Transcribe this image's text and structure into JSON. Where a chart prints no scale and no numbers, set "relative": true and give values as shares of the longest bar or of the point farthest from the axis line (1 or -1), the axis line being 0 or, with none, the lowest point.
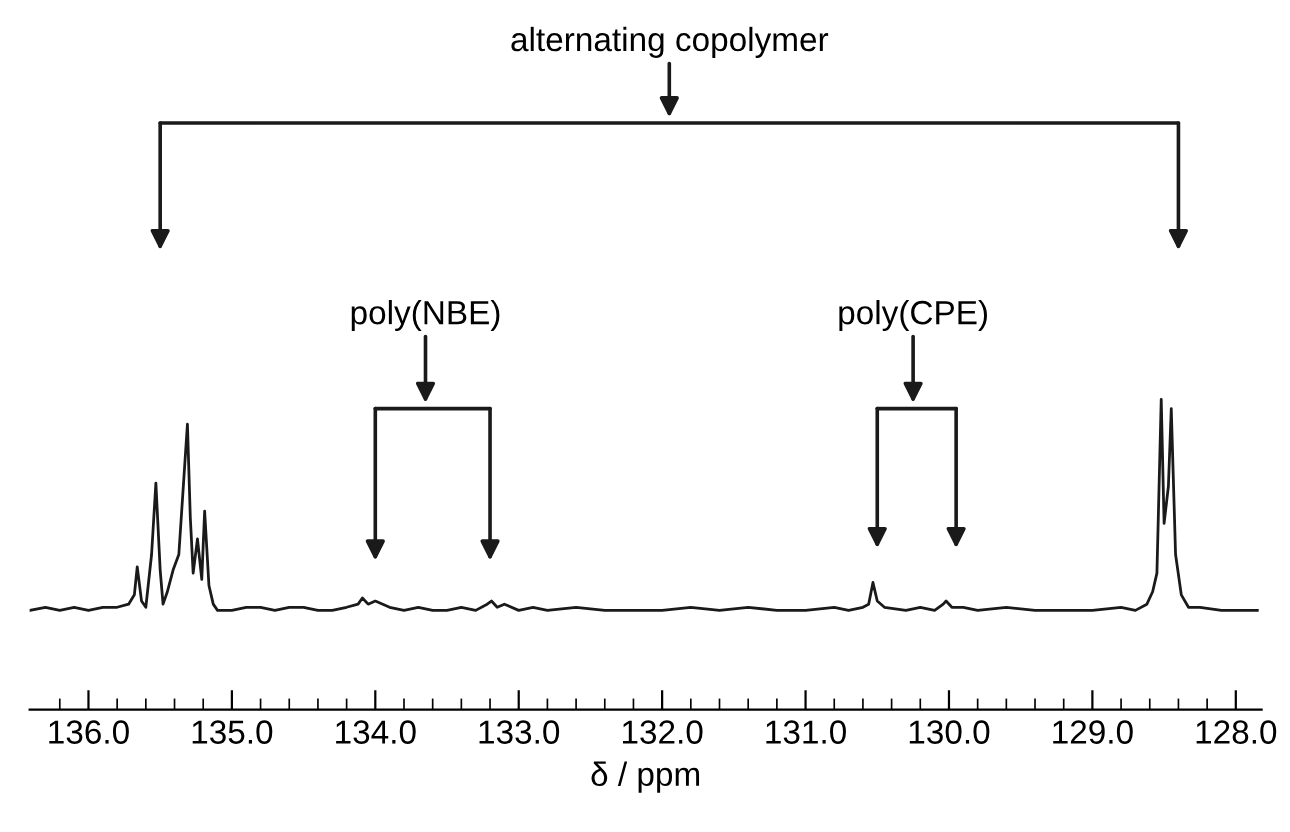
{
  "chart_data": {
    "type": "line",
    "relative": true,
    "xlabel": "δ / ppm",
    "xlim": [
      136.41,
      127.82
    ],
    "xticks": [
      {
        "value": 136.2,
        "label": null
      },
      {
        "value": 136.0,
        "label": "136.0"
      },
      {
        "value": 135.8,
        "label": null
      },
      {
        "value": 135.6,
        "label": null
      },
      {
        "value": 135.4,
        "label": null
      },
      {
        "value": 135.2,
        "label": null
      },
      {
        "value": 135.0,
        "label": "135.0"
      },
      {
        "value": 134.8,
        "label": null
      },
      {
        "value": 134.6,
        "label": null
      },
      {
        "value": 134.4,
        "label": null
      },
      {
        "value": 134.2,
        "label": null
      },
      {
        "value": 134.0,
        "label": "134.0"
      },
      {
        "value": 133.8,
        "label": null
      },
      {
        "value": 133.6,
        "label": null
      },
      {
        "value": 133.4,
        "label": null
      },
      {
        "value": 133.2,
        "label": null
      },
      {
        "value": 133.0,
        "label": "133.0"
      },
      {
        "value": 132.8,
        "label": null
      },
      {
        "value": 132.6,
        "label": null
      },
      {
        "value": 132.4,
        "label": null
      },
      {
        "value": 132.2,
        "label": null
      },
      {
        "value": 132.0,
        "label": "132.0"
      },
      {
        "value": 131.8,
        "label": null
      },
      {
        "value": 131.6,
        "label": null
      },
      {
        "value": 131.4,
        "label": null
      },
      {
        "value": 131.2,
        "label": null
      },
      {
        "value": 131.0,
        "label": "131.0"
      },
      {
        "value": 130.8,
        "label": null
      },
      {
        "value": 130.6,
        "label": null
      },
      {
        "value": 130.4,
        "label": null
      },
      {
        "value": 130.2,
        "label": null
      },
      {
        "value": 130.0,
        "label": "130.0"
      },
      {
        "value": 129.8,
        "label": null
      },
      {
        "value": 129.6,
        "label": null
      },
      {
        "value": 129.4,
        "label": null
      },
      {
        "value": 129.2,
        "label": null
      },
      {
        "value": 129.0,
        "label": "129.0"
      },
      {
        "value": 128.8,
        "label": null
      },
      {
        "value": 128.6,
        "label": null
      },
      {
        "value": 128.4,
        "label": null
      },
      {
        "value": 128.2,
        "label": null
      },
      {
        "value": 128.0,
        "label": "128.0"
      }
    ],
    "series": [
      {
        "color": "#1a1a1a",
        "x": [
          136.41,
          136.3,
          136.2,
          136.1,
          136.0,
          135.9,
          135.8,
          135.72,
          135.68,
          135.66,
          135.63,
          135.6,
          135.56,
          135.53,
          135.5,
          135.48,
          135.45,
          135.41,
          135.37,
          135.33,
          135.31,
          135.29,
          135.27,
          135.24,
          135.21,
          135.19,
          135.16,
          135.13,
          135.1,
          135.0,
          134.9,
          134.8,
          134.7,
          134.6,
          134.5,
          134.4,
          134.3,
          134.2,
          134.12,
          134.09,
          134.05,
          134.0,
          133.9,
          133.8,
          133.7,
          133.6,
          133.5,
          133.4,
          133.3,
          133.22,
          133.19,
          133.15,
          133.1,
          133.0,
          132.9,
          132.8,
          132.6,
          132.4,
          132.2,
          132.0,
          131.8,
          131.6,
          131.4,
          131.2,
          131.0,
          130.8,
          130.7,
          130.6,
          130.56,
          130.53,
          130.5,
          130.45,
          130.3,
          130.2,
          130.1,
          130.04,
          130.02,
          129.98,
          129.9,
          129.8,
          129.6,
          129.4,
          129.2,
          129.0,
          128.8,
          128.7,
          128.62,
          128.58,
          128.55,
          128.52,
          128.5,
          128.47,
          128.45,
          128.42,
          128.38,
          128.33,
          128.25,
          128.1,
          128.0,
          127.85
        ],
        "values": [
          0.32,
          0.33,
          0.32,
          0.33,
          0.32,
          0.33,
          0.33,
          0.34,
          0.37,
          0.46,
          0.35,
          0.33,
          0.5,
          0.73,
          0.45,
          0.34,
          0.38,
          0.45,
          0.5,
          0.78,
          0.92,
          0.62,
          0.44,
          0.55,
          0.42,
          0.64,
          0.4,
          0.34,
          0.32,
          0.32,
          0.33,
          0.33,
          0.32,
          0.33,
          0.33,
          0.32,
          0.32,
          0.33,
          0.34,
          0.36,
          0.34,
          0.35,
          0.33,
          0.32,
          0.33,
          0.32,
          0.32,
          0.33,
          0.32,
          0.34,
          0.35,
          0.33,
          0.34,
          0.32,
          0.33,
          0.32,
          0.33,
          0.32,
          0.32,
          0.32,
          0.33,
          0.32,
          0.33,
          0.32,
          0.32,
          0.33,
          0.32,
          0.33,
          0.34,
          0.41,
          0.35,
          0.33,
          0.32,
          0.33,
          0.32,
          0.34,
          0.35,
          0.33,
          0.33,
          0.32,
          0.33,
          0.32,
          0.32,
          0.32,
          0.33,
          0.32,
          0.34,
          0.38,
          0.44,
          1.0,
          0.6,
          0.72,
          0.97,
          0.5,
          0.37,
          0.33,
          0.33,
          0.32,
          0.32,
          0.32
        ]
      }
    ],
    "annotations": [
      "alternating copolymer",
      "poly(NBE)",
      "poly(CPE)"
    ]
  }
}
